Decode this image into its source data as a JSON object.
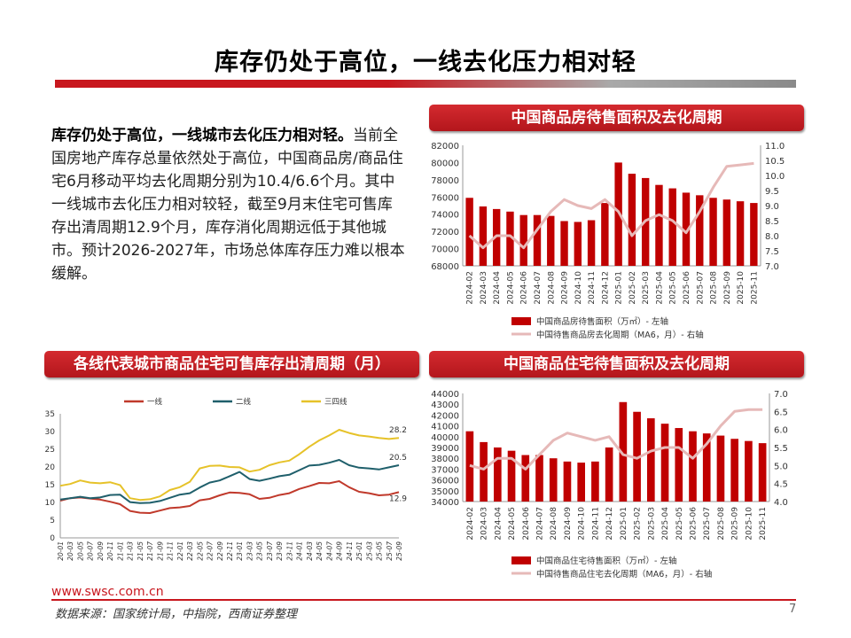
{
  "header": {
    "title": "库存仍处于高位，一线去化压力相对轻"
  },
  "text": {
    "lead": "库存仍处于高位，一线城市去化压力相对轻。",
    "body": "当前全国房地产库存总量依然处于高位，中国商品房/商品住宅6月移动平均去化周期分别为10.4/6.6个月。其中一线城市去化压力相对较轻，截至9月末住宅可售库存出清周期12.9个月，库存消化周期远低于其他城市。预计2026-2027年，市场总体库存压力难以根本缓解。"
  },
  "footer": {
    "url": "www.swsc.com.cn",
    "source": "数据来源：国家统计局，中指院，西南证券整理",
    "page": "7"
  },
  "colors": {
    "accent": "#c8171e",
    "bar": "#c00000",
    "line_pink": "#e6b9b8",
    "tier1": "#c0392b",
    "tier2": "#1f5f6b",
    "tier34": "#e6c229"
  },
  "chart_data": [
    {
      "type": "bar",
      "title": "中国商品房待售面积及去化周期",
      "categories": [
        "2024-02",
        "2024-03",
        "2024-04",
        "2024-05",
        "2024-06",
        "2024-07",
        "2024-08",
        "2024-09",
        "2024-10",
        "2024-11",
        "2024-12",
        "2025-01",
        "2025-02",
        "2025-03",
        "2025-04",
        "2025-05",
        "2025-06",
        "2025-07",
        "2025-08",
        "2025-09",
        "2025-10",
        "2025-11"
      ],
      "series": [
        {
          "name": "中国商品房待售面积（万㎡）- 左轴",
          "type": "bar",
          "axis": "left",
          "values": [
            75900,
            74900,
            74600,
            74300,
            73900,
            73900,
            73800,
            73200,
            73100,
            73300,
            75300,
            80000,
            78700,
            78200,
            77400,
            77000,
            76500,
            76200,
            75900,
            75700,
            75500,
            75300
          ]
        },
        {
          "name": "中国待售商品房去化周期（MA6，月）- 右轴",
          "type": "line",
          "axis": "right",
          "values": [
            8.0,
            7.6,
            8.0,
            8.0,
            7.6,
            8.2,
            8.8,
            9.2,
            9.0,
            8.9,
            9.2,
            8.8,
            8.0,
            8.5,
            8.7,
            8.5,
            8.1,
            8.8,
            9.6,
            10.3,
            10.35,
            10.4
          ]
        }
      ],
      "ylim_left": [
        68000,
        82000
      ],
      "yticks_left": [
        68000,
        70000,
        72000,
        74000,
        76000,
        78000,
        80000,
        82000
      ],
      "ylim_right": [
        7.0,
        11.0
      ],
      "yticks_right": [
        "7.0",
        "7.5",
        "8.0",
        "8.5",
        "9.0",
        "9.5",
        "10.0",
        "10.5",
        "11.0"
      ],
      "legend_position": "bottom"
    },
    {
      "type": "line",
      "title": "各线代表城市商品住宅可售库存出清周期（月）",
      "x_labels": [
        "20-01",
        "20-03",
        "20-05",
        "20-07",
        "20-09",
        "20-11",
        "21-01",
        "21-03",
        "21-05",
        "21-07",
        "21-09",
        "21-11",
        "22-01",
        "22-03",
        "22-05",
        "22-07",
        "22-09",
        "22-11",
        "23-01",
        "23-03",
        "23-05",
        "23-07",
        "23-09",
        "23-11",
        "24-01",
        "24-03",
        "24-05",
        "24-07",
        "24-09",
        "24-11",
        "25-01",
        "25-03",
        "25-05",
        "25-07",
        "25-09"
      ],
      "series": [
        {
          "name": "一线",
          "color": "#c0392b",
          "values": [
            10.5,
            11.2,
            11.4,
            11.1,
            10.8,
            10.2,
            9.5,
            7.6,
            7.1,
            7.0,
            7.7,
            8.4,
            8.6,
            9.0,
            10.6,
            11.0,
            12.0,
            12.8,
            12.7,
            12.3,
            11.0,
            11.3,
            12.1,
            12.6,
            13.8,
            14.6,
            15.5,
            15.4,
            16.0,
            14.3,
            13.0,
            12.6,
            12.0,
            12.2,
            12.9
          ]
        },
        {
          "name": "二线",
          "color": "#1f5f6b",
          "values": [
            10.8,
            11.2,
            11.6,
            11.2,
            11.4,
            12.1,
            12.2,
            10.1,
            9.8,
            9.9,
            10.4,
            11.3,
            12.2,
            12.6,
            14.2,
            15.6,
            16.2,
            17.4,
            18.6,
            16.6,
            16.1,
            16.7,
            17.4,
            17.8,
            19.1,
            20.4,
            20.6,
            21.2,
            22.0,
            20.5,
            19.8,
            19.6,
            19.3,
            19.9,
            20.5
          ]
        },
        {
          "name": "三四线",
          "color": "#e6c229",
          "values": [
            14.7,
            15.2,
            16.2,
            15.6,
            15.4,
            15.7,
            14.9,
            11.2,
            10.7,
            10.9,
            11.7,
            13.5,
            14.3,
            15.8,
            19.6,
            20.3,
            20.4,
            20.0,
            19.9,
            18.7,
            19.2,
            20.5,
            21.3,
            21.8,
            23.6,
            25.7,
            27.5,
            28.9,
            30.5,
            29.6,
            28.9,
            28.6,
            28.2,
            27.9,
            28.2
          ]
        }
      ],
      "ylim": [
        0,
        35
      ],
      "yticks": [
        0,
        5,
        10,
        15,
        20,
        25,
        30,
        35
      ],
      "end_labels": [
        "28.2",
        "20.5",
        "12.9"
      ],
      "legend_position": "top"
    },
    {
      "type": "bar",
      "title": "中国商品住宅待售面积及去化周期",
      "categories": [
        "2024-02",
        "2024-03",
        "2024-04",
        "2024-05",
        "2024-06",
        "2024-07",
        "2024-08",
        "2024-09",
        "2024-10",
        "2024-11",
        "2024-12",
        "2025-01",
        "2025-02",
        "2025-03",
        "2025-04",
        "2025-05",
        "2025-06",
        "2025-07",
        "2025-08",
        "2025-09",
        "2025-10",
        "2025-11"
      ],
      "series": [
        {
          "name": "中国商品住宅待售面积（万㎡）- 左轴",
          "type": "bar",
          "axis": "left",
          "values": [
            40500,
            39500,
            39000,
            38700,
            38300,
            38300,
            38000,
            37700,
            37600,
            37700,
            39000,
            43200,
            42300,
            41700,
            41200,
            40800,
            40500,
            40300,
            40100,
            39800,
            39600,
            39400
          ]
        },
        {
          "name": "中国待售商品住宅去化周期（MA6，月）- 右轴",
          "type": "line",
          "axis": "right",
          "values": [
            5.0,
            4.9,
            5.2,
            5.2,
            4.9,
            5.3,
            5.7,
            5.9,
            5.8,
            5.7,
            5.8,
            5.3,
            5.2,
            5.4,
            5.5,
            5.5,
            5.2,
            5.6,
            6.1,
            6.5,
            6.55,
            6.55
          ]
        }
      ],
      "ylim_left": [
        34000,
        44000
      ],
      "yticks_left": [
        34000,
        35000,
        36000,
        37000,
        38000,
        39000,
        40000,
        41000,
        42000,
        43000,
        44000
      ],
      "ylim_right": [
        4.0,
        7.0
      ],
      "yticks_right": [
        "4.0",
        "4.5",
        "5.0",
        "5.5",
        "6.0",
        "6.5",
        "7.0"
      ],
      "legend_position": "bottom"
    }
  ]
}
